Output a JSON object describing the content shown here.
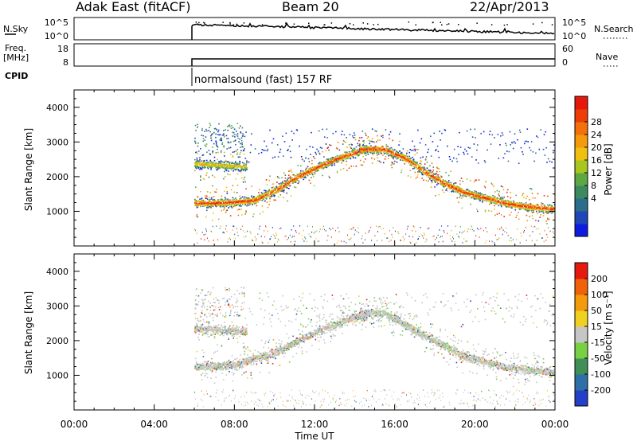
{
  "header": {
    "station": "Adak East (fitACF)",
    "beam": "Beam 20",
    "date": "22/Apr/2013"
  },
  "noise_panel": {
    "left_label": "N.Sky",
    "left_ticks": [
      "10^5",
      "10^0"
    ],
    "right_label": "N.Search",
    "right_ticks": [
      "10^5",
      "10^0"
    ]
  },
  "freq_panel": {
    "left_label_1": "Freq.",
    "left_label_2": "[MHz]",
    "left_ticks": [
      "18",
      "8"
    ],
    "right_label": "Nave",
    "right_ticks": [
      "60",
      "0"
    ]
  },
  "cpid": {
    "label": "CPID",
    "mode_text": "normalsound (fast) 157 RF"
  },
  "chart_data": [
    {
      "type": "heatmap",
      "panel": "power",
      "ylabel": "Slant Range [km]",
      "ylim": [
        0,
        4500
      ],
      "yticks": [
        "1000",
        "2000",
        "3000",
        "4000"
      ],
      "xlabel": "",
      "xlim": [
        0,
        24
      ],
      "colorbar": {
        "label": "Power [dB]",
        "ticks": [
          "28",
          "24",
          "20",
          "16",
          "12",
          "8",
          "4"
        ],
        "colors": [
          "#0d1de0",
          "#1f47b8",
          "#2c6d8c",
          "#3d8a60",
          "#5ea844",
          "#a8c620",
          "#f0c010",
          "#f59a0c",
          "#f3700a",
          "#ef3d08",
          "#e51a0d"
        ]
      },
      "features": [
        {
          "name": "lower band",
          "points": [
            [
              6,
              1250
            ],
            [
              7,
              1250
            ],
            [
              8,
              1280
            ],
            [
              9,
              1330
            ],
            [
              10,
              1600
            ],
            [
              11,
              1950
            ],
            [
              12,
              2250
            ],
            [
              13,
              2500
            ],
            [
              14,
              2700
            ],
            [
              14.6,
              2800
            ]
          ]
        },
        {
          "name": "descending band",
          "points": [
            [
              15.5,
              2800
            ],
            [
              16.5,
              2550
            ],
            [
              17.5,
              2150
            ],
            [
              18.5,
              1800
            ],
            [
              19.5,
              1550
            ],
            [
              20.5,
              1400
            ],
            [
              21.5,
              1250
            ],
            [
              22.5,
              1150
            ],
            [
              24,
              1080
            ]
          ]
        },
        {
          "name": "upper band",
          "points": [
            [
              6,
              2400
            ],
            [
              7,
              2350
            ],
            [
              8,
              2300
            ]
          ]
        }
      ]
    },
    {
      "type": "heatmap",
      "panel": "velocity",
      "ylabel": "Slant Range [km]",
      "ylim": [
        0,
        4500
      ],
      "yticks": [
        "1000",
        "2000",
        "3000",
        "4000"
      ],
      "xlabel": "Time UT",
      "xlim": [
        0,
        24
      ],
      "xticks": [
        "00:00",
        "04:00",
        "08:00",
        "12:00",
        "16:00",
        "20:00",
        "00:00"
      ],
      "colorbar": {
        "label": "Velocity [m s⁻¹]",
        "ticks": [
          "200",
          "100",
          "50",
          "15",
          "-15",
          "-50",
          "-100",
          "-200"
        ],
        "colors": [
          "#2540c8",
          "#2f6fa8",
          "#3f8f56",
          "#7ad043",
          "#c6c6c6",
          "#f0d020",
          "#f39a0d",
          "#f0620a",
          "#e51a0d"
        ]
      },
      "features": [
        {
          "name": "lower band",
          "points": [
            [
              6,
              1250
            ],
            [
              8,
              1300
            ],
            [
              10,
              1650
            ],
            [
              12,
              2250
            ],
            [
              14,
              2700
            ]
          ]
        },
        {
          "name": "descending band",
          "points": [
            [
              15.5,
              2800
            ],
            [
              17.5,
              2150
            ],
            [
              19.5,
              1550
            ],
            [
              21.5,
              1250
            ],
            [
              24,
              1080
            ]
          ]
        }
      ]
    }
  ]
}
